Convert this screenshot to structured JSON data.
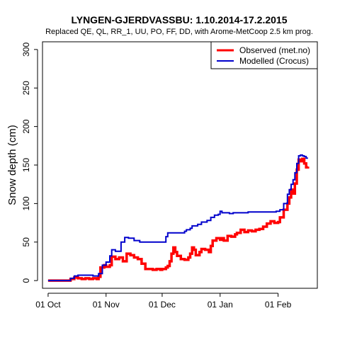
{
  "chart_data": {
    "type": "line",
    "title": "LYNGEN-GJERDVASSBU: 1.10.2014-17.2.2015",
    "subtitle": "Replaced QE, QL, RR_1, UU, PO, FF, DD,  with Arome-MetCoop 2.5 km prog.",
    "xlabel": "",
    "ylabel": "Snow depth (cm)",
    "xlim": [
      "2014-09-28",
      "2015-02-22"
    ],
    "ylim": [
      -10,
      310
    ],
    "x_ticks": [
      {
        "date": "2014-10-01",
        "label": "01 Oct"
      },
      {
        "date": "2014-11-01",
        "label": "01 Nov"
      },
      {
        "date": "2014-12-01",
        "label": "01 Dec"
      },
      {
        "date": "2015-01-01",
        "label": "01 Jan"
      },
      {
        "date": "2015-02-01",
        "label": "01 Feb"
      }
    ],
    "y_ticks": [
      0,
      50,
      100,
      150,
      200,
      250,
      300
    ],
    "grid": false,
    "legend_position": "top-right",
    "series": [
      {
        "name": "Observed (met.no)",
        "color": "#ff0000",
        "points": [
          [
            "2014-10-01",
            0
          ],
          [
            "2014-10-11",
            0
          ],
          [
            "2014-10-13",
            2
          ],
          [
            "2014-10-15",
            4
          ],
          [
            "2014-10-17",
            3
          ],
          [
            "2014-10-19",
            2
          ],
          [
            "2014-10-21",
            3
          ],
          [
            "2014-10-23",
            2
          ],
          [
            "2014-10-25",
            3
          ],
          [
            "2014-10-27",
            2
          ],
          [
            "2014-10-28",
            5
          ],
          [
            "2014-10-29",
            17
          ],
          [
            "2014-10-31",
            20
          ],
          [
            "2014-11-01",
            18
          ],
          [
            "2014-11-03",
            20
          ],
          [
            "2014-11-04",
            31
          ],
          [
            "2014-11-06",
            28
          ],
          [
            "2014-11-08",
            30
          ],
          [
            "2014-11-10",
            25
          ],
          [
            "2014-11-12",
            35
          ],
          [
            "2014-11-14",
            33
          ],
          [
            "2014-11-16",
            30
          ],
          [
            "2014-11-18",
            28
          ],
          [
            "2014-11-20",
            22
          ],
          [
            "2014-11-22",
            15
          ],
          [
            "2014-11-24",
            15
          ],
          [
            "2014-11-26",
            14
          ],
          [
            "2014-11-28",
            15
          ],
          [
            "2014-11-30",
            14
          ],
          [
            "2014-12-01",
            15
          ],
          [
            "2014-12-03",
            17
          ],
          [
            "2014-12-04",
            19
          ],
          [
            "2014-12-05",
            25
          ],
          [
            "2014-12-06",
            35
          ],
          [
            "2014-12-07",
            43
          ],
          [
            "2014-12-08",
            37
          ],
          [
            "2014-12-09",
            32
          ],
          [
            "2014-12-11",
            28
          ],
          [
            "2014-12-13",
            27
          ],
          [
            "2014-12-15",
            30
          ],
          [
            "2014-12-16",
            35
          ],
          [
            "2014-12-17",
            43
          ],
          [
            "2014-12-18",
            40
          ],
          [
            "2014-12-19",
            33
          ],
          [
            "2014-12-21",
            37
          ],
          [
            "2014-12-22",
            41
          ],
          [
            "2014-12-24",
            40
          ],
          [
            "2014-12-26",
            37
          ],
          [
            "2014-12-27",
            45
          ],
          [
            "2014-12-28",
            52
          ],
          [
            "2014-12-30",
            55
          ],
          [
            "2015-01-01",
            53
          ],
          [
            "2015-01-02",
            55
          ],
          [
            "2015-01-03",
            52
          ],
          [
            "2015-01-05",
            58
          ],
          [
            "2015-01-07",
            57
          ],
          [
            "2015-01-09",
            60
          ],
          [
            "2015-01-10",
            62
          ],
          [
            "2015-01-12",
            66
          ],
          [
            "2015-01-14",
            63
          ],
          [
            "2015-01-16",
            65
          ],
          [
            "2015-01-18",
            64
          ],
          [
            "2015-01-20",
            66
          ],
          [
            "2015-01-22",
            67
          ],
          [
            "2015-01-24",
            70
          ],
          [
            "2015-01-26",
            74
          ],
          [
            "2015-01-28",
            77
          ],
          [
            "2015-01-30",
            75
          ],
          [
            "2015-02-01",
            76
          ],
          [
            "2015-02-02",
            82
          ],
          [
            "2015-02-04",
            92
          ],
          [
            "2015-02-06",
            100
          ],
          [
            "2015-02-07",
            108
          ],
          [
            "2015-02-08",
            118
          ],
          [
            "2015-02-09",
            113
          ],
          [
            "2015-02-10",
            126
          ],
          [
            "2015-02-11",
            144
          ],
          [
            "2015-02-12",
            157
          ],
          [
            "2015-02-13",
            155
          ],
          [
            "2015-02-14",
            158
          ],
          [
            "2015-02-15",
            152
          ],
          [
            "2015-02-16",
            147
          ],
          [
            "2015-02-17",
            148
          ]
        ]
      },
      {
        "name": "Modelled (Crocus)",
        "color": "#0000cc",
        "points": [
          [
            "2014-10-01",
            0
          ],
          [
            "2014-10-11",
            0
          ],
          [
            "2014-10-13",
            3
          ],
          [
            "2014-10-15",
            6
          ],
          [
            "2014-10-17",
            7
          ],
          [
            "2014-10-25",
            6
          ],
          [
            "2014-10-27",
            6
          ],
          [
            "2014-10-28",
            9
          ],
          [
            "2014-10-30",
            20
          ],
          [
            "2014-11-01",
            24
          ],
          [
            "2014-11-03",
            32
          ],
          [
            "2014-11-04",
            40
          ],
          [
            "2014-11-06",
            38
          ],
          [
            "2014-11-09",
            50
          ],
          [
            "2014-11-11",
            56
          ],
          [
            "2014-11-13",
            55
          ],
          [
            "2014-11-16",
            52
          ],
          [
            "2014-11-19",
            50
          ],
          [
            "2014-11-22",
            50
          ],
          [
            "2014-12-01",
            50
          ],
          [
            "2014-12-03",
            57
          ],
          [
            "2014-12-04",
            62
          ],
          [
            "2014-12-10",
            62
          ],
          [
            "2014-12-13",
            64
          ],
          [
            "2014-12-14",
            66
          ],
          [
            "2014-12-16",
            68
          ],
          [
            "2014-12-17",
            71
          ],
          [
            "2014-12-20",
            73
          ],
          [
            "2014-12-22",
            76
          ],
          [
            "2014-12-25",
            78
          ],
          [
            "2014-12-27",
            82
          ],
          [
            "2014-12-29",
            85
          ],
          [
            "2014-12-31",
            86
          ],
          [
            "2015-01-01",
            90
          ],
          [
            "2015-01-02",
            88
          ],
          [
            "2015-01-06",
            87
          ],
          [
            "2015-01-08",
            88
          ],
          [
            "2015-01-12",
            88
          ],
          [
            "2015-01-16",
            89
          ],
          [
            "2015-01-25",
            89
          ],
          [
            "2015-01-31",
            90
          ],
          [
            "2015-02-02",
            92
          ],
          [
            "2015-02-04",
            100
          ],
          [
            "2015-02-06",
            112
          ],
          [
            "2015-02-07",
            118
          ],
          [
            "2015-02-08",
            125
          ],
          [
            "2015-02-09",
            131
          ],
          [
            "2015-02-10",
            140
          ],
          [
            "2015-02-11",
            152
          ],
          [
            "2015-02-12",
            162
          ],
          [
            "2015-02-13",
            163
          ],
          [
            "2015-02-14",
            162
          ],
          [
            "2015-02-15",
            161
          ],
          [
            "2015-02-16",
            159
          ],
          [
            "2015-02-17",
            159
          ]
        ]
      }
    ]
  }
}
